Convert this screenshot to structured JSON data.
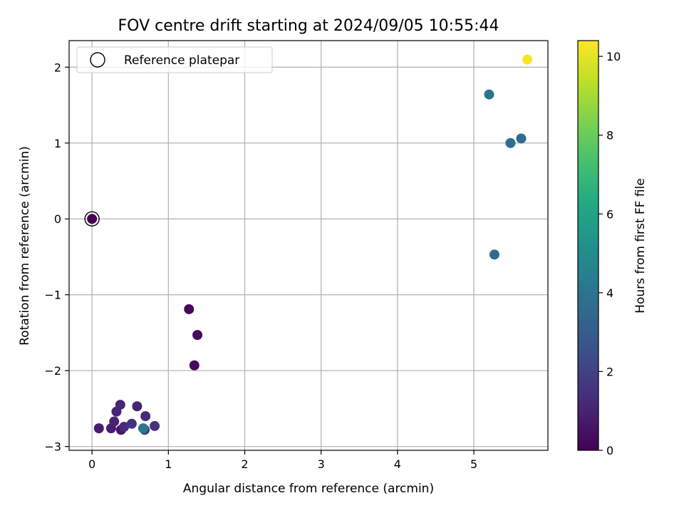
{
  "chart_data": {
    "type": "scatter",
    "title": "FOV centre drift starting at 2024/09/05 10:55:44",
    "xlabel": "Angular distance from reference (arcmin)",
    "ylabel": "Rotation from reference (arcmin)",
    "xlim": [
      -0.3,
      5.97
    ],
    "ylim": [
      -3.05,
      2.35
    ],
    "xticks": [
      0,
      1,
      2,
      3,
      4,
      5
    ],
    "yticks": [
      -3,
      -2,
      -1,
      0,
      1,
      2
    ],
    "xtick_labels": [
      "0",
      "1",
      "2",
      "3",
      "4",
      "5"
    ],
    "ytick_labels": [
      "−3",
      "−2",
      "−1",
      "0",
      "1",
      "2"
    ],
    "grid": true,
    "legend": {
      "location": "upper-left",
      "entries": [
        {
          "label": "Reference platepar",
          "marker": "open-circle"
        }
      ]
    },
    "reference_point": {
      "x": 0.0,
      "y": 0.0
    },
    "colorbar": {
      "label": "Hours from first FF file",
      "colormap": "viridis",
      "range": [
        0,
        10.4
      ],
      "ticks": [
        0,
        2,
        4,
        6,
        8,
        10
      ],
      "tick_labels": [
        "0",
        "2",
        "4",
        "6",
        "8",
        "10"
      ]
    },
    "points": [
      {
        "x": 0.0,
        "y": 0.0,
        "c": 0.0
      },
      {
        "x": 1.27,
        "y": -1.19,
        "c": 0.2
      },
      {
        "x": 1.38,
        "y": -1.53,
        "c": 0.3
      },
      {
        "x": 1.34,
        "y": -1.93,
        "c": 0.3
      },
      {
        "x": 0.09,
        "y": -2.76,
        "c": 0.8
      },
      {
        "x": 0.25,
        "y": -2.76,
        "c": 0.9
      },
      {
        "x": 0.29,
        "y": -2.67,
        "c": 1.0
      },
      {
        "x": 0.32,
        "y": -2.54,
        "c": 1.0
      },
      {
        "x": 0.37,
        "y": -2.45,
        "c": 1.1
      },
      {
        "x": 0.38,
        "y": -2.78,
        "c": 0.6
      },
      {
        "x": 0.42,
        "y": -2.74,
        "c": 1.3
      },
      {
        "x": 0.52,
        "y": -2.7,
        "c": 1.5
      },
      {
        "x": 0.59,
        "y": -2.47,
        "c": 1.0
      },
      {
        "x": 0.7,
        "y": -2.6,
        "c": 1.2
      },
      {
        "x": 0.82,
        "y": -2.73,
        "c": 1.5
      },
      {
        "x": 0.69,
        "y": -2.78,
        "c": 1.8
      },
      {
        "x": 0.67,
        "y": -2.76,
        "c": 4.1
      },
      {
        "x": 5.2,
        "y": 1.64,
        "c": 4.0
      },
      {
        "x": 5.48,
        "y": 1.0,
        "c": 3.8
      },
      {
        "x": 5.62,
        "y": 1.06,
        "c": 3.7
      },
      {
        "x": 5.27,
        "y": -0.47,
        "c": 3.6
      },
      {
        "x": 5.7,
        "y": 2.1,
        "c": 10.3
      }
    ]
  }
}
